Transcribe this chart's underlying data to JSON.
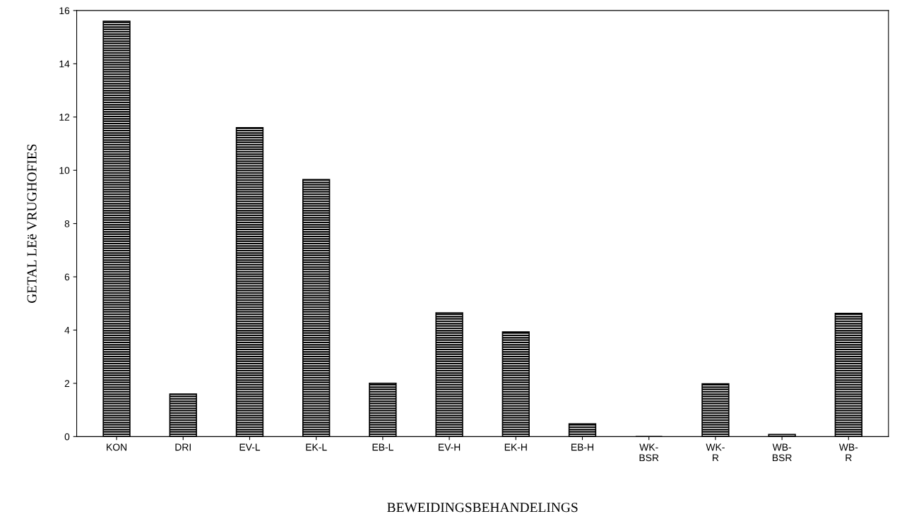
{
  "chart_data": {
    "type": "bar",
    "xlabel": "BEWEIDINGSBEHANDELINGS",
    "ylabel": "GETAL LEë VRUGHOFIES",
    "categories": [
      "KON",
      "DRI",
      "EV-L",
      "EK-L",
      "EB-L",
      "EV-H",
      "EK-H",
      "EB-H",
      "WK-\nBSR",
      "WK-\nR",
      "WB-\nBSR",
      "WB-\nR"
    ],
    "values": [
      15.6,
      1.6,
      11.6,
      9.65,
      2.0,
      4.65,
      3.93,
      0.48,
      0,
      1.98,
      0.08,
      4.63
    ],
    "color": "#000000",
    "ylim": [
      0,
      16
    ],
    "yticks": [
      0,
      2,
      4,
      6,
      8,
      10,
      12,
      14,
      16
    ],
    "grid": false
  }
}
